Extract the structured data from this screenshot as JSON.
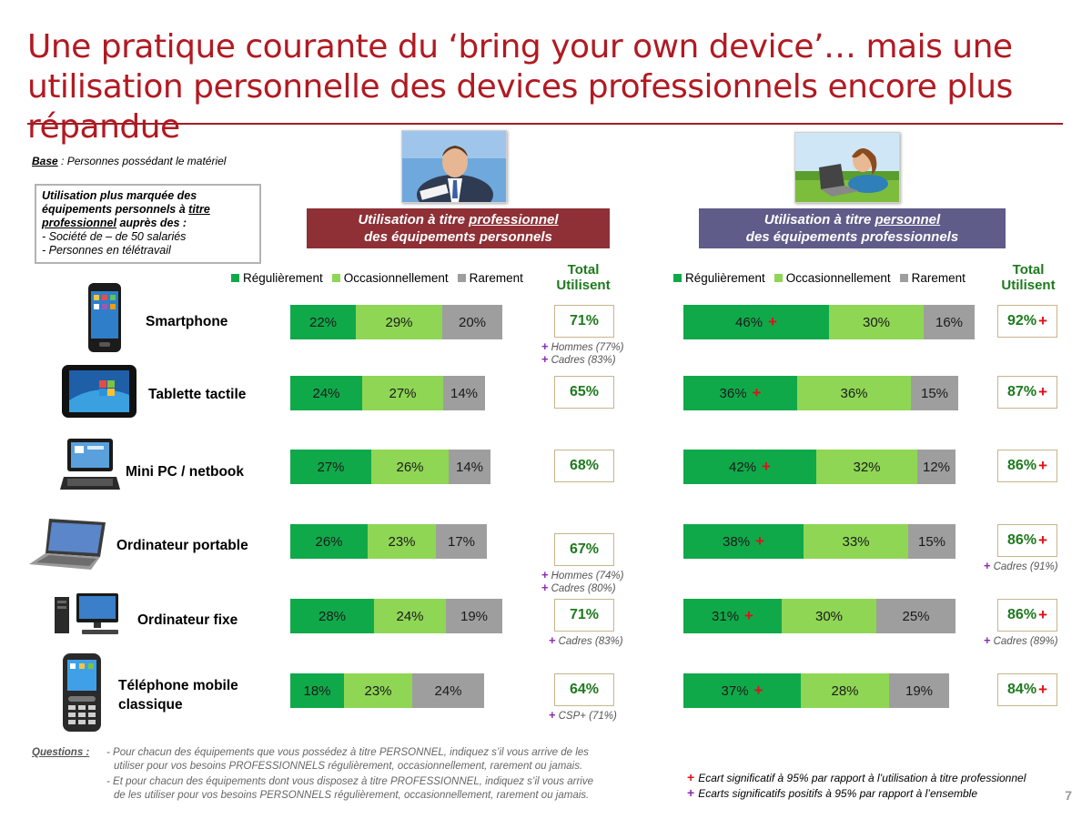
{
  "title": "Une pratique courante du ‘bring your own device’… mais une utilisation personnelle des devices professionnels encore plus répandue",
  "base": {
    "label": "Base",
    "text": " : Personnes possédant le matériel"
  },
  "infobox": {
    "part1": "Utilisation plus marquée des équipements personnels à ",
    "part2": "titre professionnel",
    "part3": " auprès des :",
    "line1": "- Société de – de 50 salariés",
    "line2": "- Personnes en télétravail"
  },
  "banners": {
    "left": {
      "pre": "Utilisation à titre ",
      "u": "professionnel",
      "line2": "des équipements personnels"
    },
    "right": {
      "pre": "Utilisation à titre ",
      "u": "personnel",
      "line2": "des équipements professionnels"
    }
  },
  "legend": [
    "Régulièrement",
    "Occasionnellement",
    "Rarement"
  ],
  "total_header": {
    "line1": "Total",
    "line2": "Utilisent"
  },
  "colors": {
    "reg": "#10a94a",
    "occ": "#8fd655",
    "rar": "#9e9e9e",
    "plus_red": "#e0101a",
    "plus_purple": "#8a2bb5",
    "title": "#b11a22"
  },
  "devices": [
    "Smartphone",
    "Tablette tactile",
    "Mini PC / netbook",
    "Ordinateur portable",
    "Ordinateur fixe",
    "Téléphone mobile classique"
  ],
  "chart_data": [
    {
      "type": "bar",
      "stacked": true,
      "orientation": "horizontal",
      "title": "Utilisation à titre professionnel des équipements personnels",
      "categories": [
        "Smartphone",
        "Tablette tactile",
        "Mini PC / netbook",
        "Ordinateur portable",
        "Ordinateur fixe",
        "Téléphone mobile classique"
      ],
      "series": [
        {
          "name": "Régulièrement",
          "values": [
            22,
            24,
            27,
            26,
            28,
            18
          ]
        },
        {
          "name": "Occasionnellement",
          "values": [
            29,
            27,
            26,
            23,
            24,
            23
          ]
        },
        {
          "name": "Rarement",
          "values": [
            20,
            14,
            14,
            17,
            19,
            24
          ]
        }
      ],
      "totals": [
        71,
        65,
        68,
        67,
        71,
        64
      ],
      "reg_significant": [
        false,
        false,
        false,
        false,
        false,
        false
      ],
      "total_significant": [
        false,
        false,
        false,
        false,
        false,
        false
      ],
      "notes": [
        [
          "Hommes (77%)",
          "Cadres (83%)"
        ],
        [],
        [],
        [
          "Hommes (74%)",
          "Cadres (80%)"
        ],
        [
          "Cadres (83%)"
        ],
        [
          "CSP+ (71%)"
        ]
      ]
    },
    {
      "type": "bar",
      "stacked": true,
      "orientation": "horizontal",
      "title": "Utilisation à titre personnel des équipements professionnels",
      "categories": [
        "Smartphone",
        "Tablette tactile",
        "Mini PC / netbook",
        "Ordinateur portable",
        "Ordinateur fixe",
        "Téléphone mobile classique"
      ],
      "series": [
        {
          "name": "Régulièrement",
          "values": [
            46,
            36,
            42,
            38,
            31,
            37
          ]
        },
        {
          "name": "Occasionnellement",
          "values": [
            30,
            36,
            32,
            33,
            30,
            28
          ]
        },
        {
          "name": "Rarement",
          "values": [
            16,
            15,
            12,
            15,
            25,
            19
          ]
        }
      ],
      "totals": [
        92,
        87,
        86,
        86,
        86,
        84
      ],
      "reg_significant": [
        true,
        true,
        true,
        true,
        true,
        true
      ],
      "total_significant": [
        true,
        true,
        true,
        true,
        true,
        true
      ],
      "notes": [
        [],
        [],
        [],
        [
          "Cadres  (91%)"
        ],
        [
          "Cadres (89%)"
        ],
        []
      ]
    }
  ],
  "questions": {
    "label": "Questions :",
    "q1a": "- Pour chacun des équipements que vous possédez à titre PERSONNEL, indiquez s’il vous arrive de les",
    "q1b": "utiliser pour vos besoins PROFESSIONNELS régulièrement, occasionnellement, rarement ou jamais.",
    "q2a": "- Et pour chacun des équipements dont vous disposez à titre PROFESSIONNEL, indiquez s’il vous arrive",
    "q2b": "de les utiliser pour vos besoins PERSONNELS régulièrement, occasionnellement, rarement ou jamais."
  },
  "footnotes": {
    "red": "Ecart significatif à 95% par rapport à l’utilisation à titre professionnel",
    "purple": "Ecarts significatifs positifs à 95% par rapport à l’ensemble"
  },
  "page_number": "7"
}
